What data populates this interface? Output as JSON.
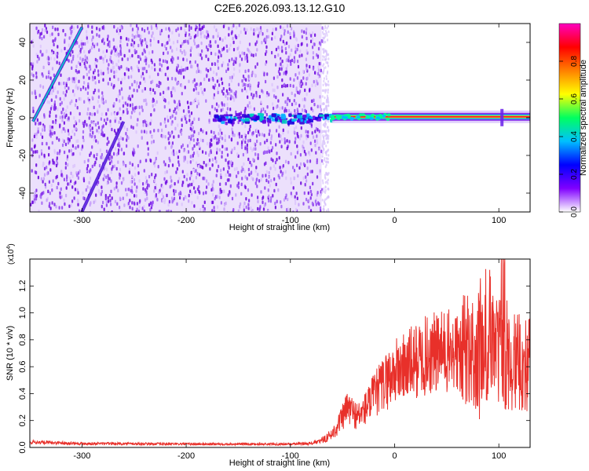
{
  "figure": {
    "title": "C2E6.2026.093.13.12.G10"
  },
  "chart_data": [
    {
      "type": "heatmap",
      "title": "C2E6.2026.093.13.12.G10",
      "xlabel": "Height of straight line (km)",
      "ylabel": "Frequency (Hz)",
      "xlim": [
        -350,
        130
      ],
      "ylim": [
        -50,
        50
      ],
      "x_ticks": [
        -300,
        -200,
        -100,
        0,
        100
      ],
      "x_tick_labels": [
        "-300",
        "-200",
        "-100",
        "0",
        "100"
      ],
      "y_ticks": [
        -40,
        -20,
        0,
        20,
        40
      ],
      "y_tick_labels": [
        "-40",
        "-20",
        "0",
        "20",
        "40"
      ],
      "noise_region_x": [
        -350,
        -70
      ],
      "signal_line": {
        "x_start": -60,
        "x_end": 130,
        "frequency": 0.5
      },
      "sweep_lines": [
        {
          "x": [
            -347,
            -300
          ],
          "frequency": [
            -2,
            48
          ]
        },
        {
          "x": [
            -300,
            -260
          ],
          "frequency": [
            -50,
            -2
          ]
        }
      ],
      "colorbar": {
        "label": "Normalized spectral amplitude",
        "range": [
          0.0,
          1.0
        ],
        "ticks": [
          0.0,
          0.2,
          0.4,
          0.6,
          0.8
        ],
        "tick_labels": [
          "0.0",
          "0.2",
          "0.4",
          "0.6",
          "0.8"
        ],
        "colormap": [
          "#ffffff",
          "#8000ff",
          "#0000ff",
          "#00c0ff",
          "#00ff60",
          "#ffff00",
          "#ff8000",
          "#ff0000",
          "#ff00c0"
        ]
      },
      "grid": false
    },
    {
      "type": "line",
      "xlabel": "Height of straight line (km)",
      "ylabel": "SNR (10 * v/v)",
      "y_multiplier": "(x10",
      "y_multiplier_exp": "4",
      "y_multiplier_close": ")",
      "xlim": [
        -350,
        130
      ],
      "ylim": [
        0,
        14000
      ],
      "x_ticks": [
        -300,
        -200,
        -100,
        0,
        100
      ],
      "x_tick_labels": [
        "-300",
        "-200",
        "-100",
        "0",
        "100"
      ],
      "y_ticks": [
        0,
        2000,
        4000,
        6000,
        8000,
        10000,
        12000
      ],
      "y_tick_labels": [
        "0.0",
        "0.2",
        "0.4",
        "0.6",
        "0.8",
        "1.0",
        "1.2"
      ],
      "color": "#e8302a",
      "grid": false,
      "series": [
        {
          "x": [
            -350,
            -300,
            -200,
            -100,
            -80,
            -70,
            -60,
            -50,
            -45,
            -40,
            -35,
            -30,
            -20,
            -10,
            0,
            10,
            20,
            30,
            40,
            50,
            60,
            70,
            80,
            90,
            95,
            100,
            105,
            110,
            115,
            120,
            125,
            130
          ],
          "values": [
            400,
            300,
            250,
            250,
            300,
            500,
            1000,
            2200,
            3000,
            2600,
            2300,
            2700,
            3800,
            4800,
            5600,
            6000,
            6400,
            6800,
            7000,
            7100,
            7000,
            7200,
            7300,
            7500,
            7000,
            7600,
            6800,
            7000,
            6300,
            6200,
            6100,
            6200
          ]
        }
      ]
    }
  ]
}
